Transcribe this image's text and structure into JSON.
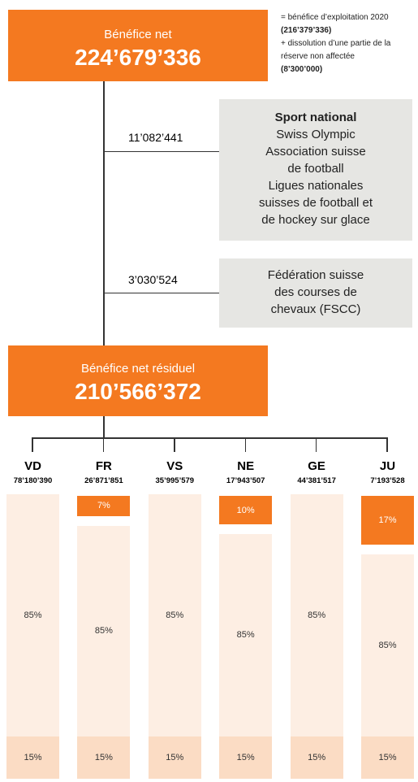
{
  "top": {
    "title": "Bénéfice net",
    "amount": "224’679’336"
  },
  "note": [
    {
      "text": "= bénéfice d’exploitation 2020",
      "bold": false
    },
    {
      "text": "(216’379’336)",
      "bold": true
    },
    {
      "text": "+ dissolution d’une partie de la",
      "bold": false
    },
    {
      "text": "réserve non affectée",
      "bold": false
    },
    {
      "text": "(8’300’000)",
      "bold": true
    }
  ],
  "branches": [
    {
      "amount": "11’082’441",
      "title": "Sport national",
      "lines": [
        "Swiss Olympic",
        "Association suisse",
        "de football",
        "Ligues nationales",
        "suisses de football et",
        "de hockey sur glace"
      ]
    },
    {
      "amount": "3’030’524",
      "lines": [
        "Fédération suisse",
        "des courses de",
        "chevaux (FSCC)"
      ]
    }
  ],
  "residual": {
    "title": "Bénéfice net résiduel",
    "amount": "210’566’372"
  },
  "cantons": [
    {
      "name": "VD",
      "amount": "78’180’390",
      "segments": [
        {
          "value": 85,
          "label": "85%"
        },
        {
          "value": 15,
          "label": "15%"
        }
      ]
    },
    {
      "name": "FR",
      "amount": "26’871’851",
      "segments": [
        {
          "value": 7,
          "label": "7%"
        },
        {
          "value": 85,
          "label": "85%"
        },
        {
          "value": 15,
          "label": "15%"
        }
      ]
    },
    {
      "name": "VS",
      "amount": "35’995’579",
      "segments": [
        {
          "value": 85,
          "label": "85%"
        },
        {
          "value": 15,
          "label": "15%"
        }
      ]
    },
    {
      "name": "NE",
      "amount": "17’943’507",
      "segments": [
        {
          "value": 10,
          "label": "10%"
        },
        {
          "value": 85,
          "label": "85%"
        },
        {
          "value": 15,
          "label": "15%"
        }
      ]
    },
    {
      "name": "GE",
      "amount": "44’381’517",
      "segments": [
        {
          "value": 85,
          "label": "85%"
        },
        {
          "value": 15,
          "label": "15%"
        }
      ]
    },
    {
      "name": "JU",
      "amount": "7’193’528",
      "segments": [
        {
          "value": 17,
          "label": "17%"
        },
        {
          "value": 85,
          "label": "85%"
        },
        {
          "value": 15,
          "label": "15%"
        }
      ]
    }
  ]
}
